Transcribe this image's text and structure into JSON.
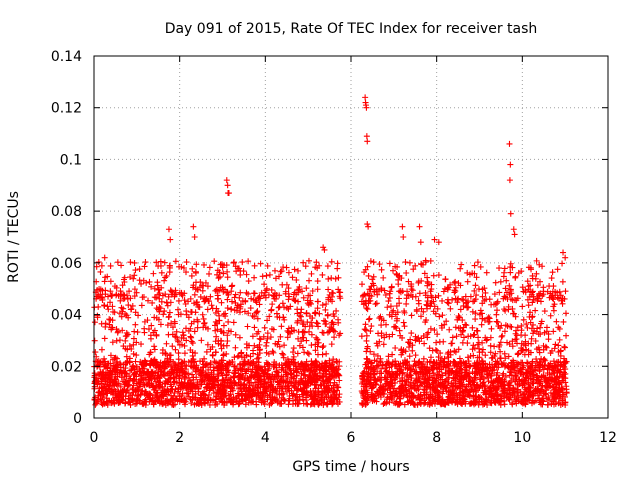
{
  "chart_data": {
    "type": "scatter",
    "title": "Day 091 of 2015, Rate Of TEC Index for receiver tash",
    "xlabel": "GPS time / hours",
    "ylabel": "ROTI / TECUs",
    "xlim": [
      0,
      12
    ],
    "ylim": [
      0,
      0.14
    ],
    "x_ticks": [
      0,
      2,
      4,
      6,
      8,
      10,
      12
    ],
    "x_tick_labels": [
      "0",
      "2",
      "4",
      "6",
      "8",
      "10",
      "12"
    ],
    "y_ticks": [
      0,
      0.02,
      0.04,
      0.06,
      0.08,
      0.1,
      0.12,
      0.14
    ],
    "y_tick_labels": [
      "0",
      "0.02",
      "0.04",
      "0.06",
      "0.08",
      "0.1",
      "0.12",
      "0.14"
    ],
    "grid": true,
    "marker": "plus",
    "color": "#ff0000",
    "series": [
      {
        "name": "ROTI",
        "segments": [
          {
            "x_start": 0.0,
            "x_end": 5.75,
            "typical_low": 0.005,
            "typical_high": 0.05
          },
          {
            "x_start": 6.25,
            "x_end": 11.05,
            "typical_low": 0.005,
            "typical_high": 0.05
          }
        ],
        "x": [
          6.33,
          6.34,
          6.35,
          6.36,
          6.37,
          6.38,
          3.1,
          3.12,
          3.13,
          3.15,
          9.7,
          9.72,
          9.71,
          9.73,
          9.8,
          9.82,
          1.75,
          1.78,
          2.32,
          2.35,
          6.38,
          6.4,
          7.2,
          7.22,
          7.6,
          7.63,
          7.95,
          8.05,
          0.25,
          5.35,
          5.38,
          10.95,
          11.0
        ],
        "y": [
          0.124,
          0.122,
          0.121,
          0.12,
          0.109,
          0.107,
          0.092,
          0.09,
          0.087,
          0.087,
          0.106,
          0.098,
          0.092,
          0.079,
          0.073,
          0.071,
          0.073,
          0.069,
          0.074,
          0.07,
          0.075,
          0.074,
          0.074,
          0.07,
          0.074,
          0.068,
          0.069,
          0.068,
          0.062,
          0.066,
          0.065,
          0.064,
          0.062
        ]
      }
    ]
  }
}
